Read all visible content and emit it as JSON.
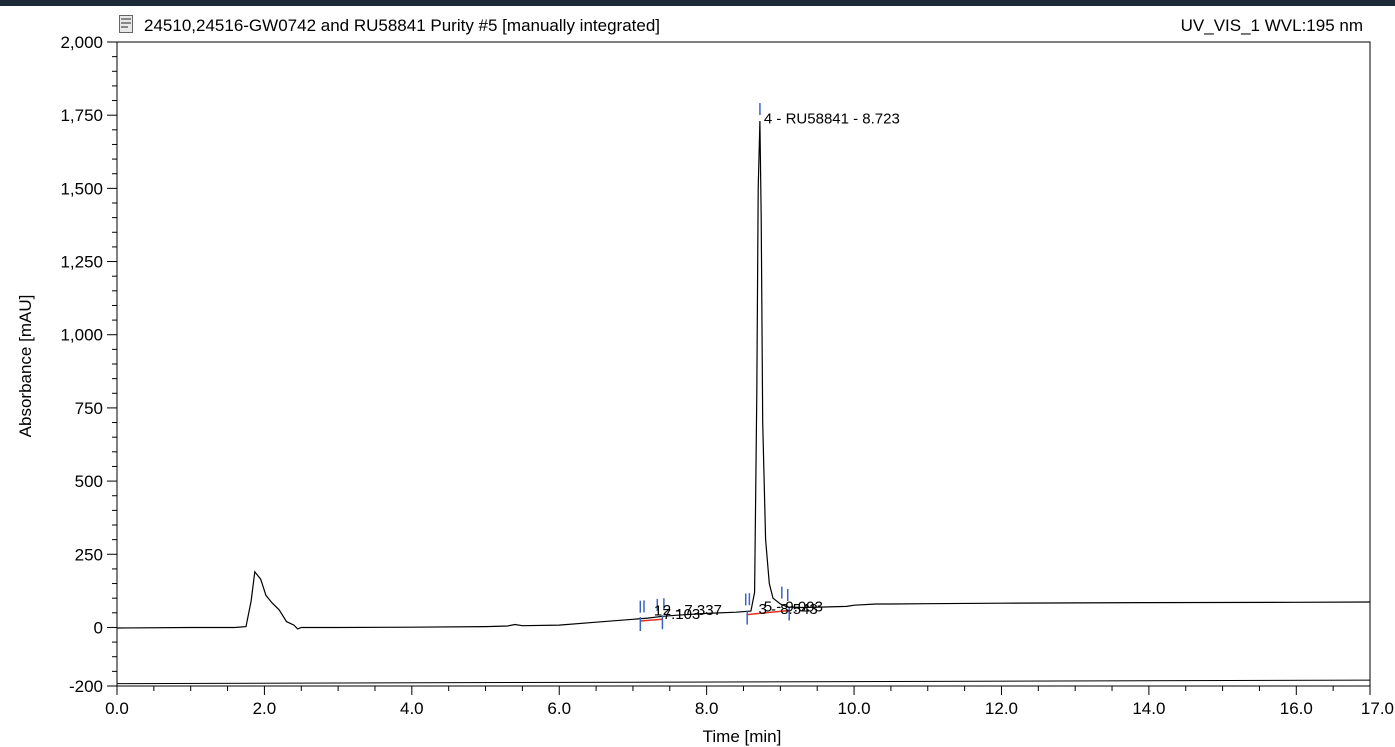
{
  "chart_data": {
    "type": "line",
    "title": "24510,24516-GW0742 and RU58841 Purity #5 [manually integrated]",
    "channel": "UV_VIS_1 WVL:195 nm",
    "xlabel": "Time [min]",
    "ylabel": "Absorbance [mAU]",
    "xlim": [
      0,
      17
    ],
    "ylim": [
      -200,
      2000
    ],
    "xticks": [
      {
        "v": 0,
        "label": "0.0"
      },
      {
        "v": 2,
        "label": "2.0"
      },
      {
        "v": 4,
        "label": "4.0"
      },
      {
        "v": 6,
        "label": "6.0"
      },
      {
        "v": 8,
        "label": "8.0"
      },
      {
        "v": 10,
        "label": "10.0"
      },
      {
        "v": 12,
        "label": "12.0"
      },
      {
        "v": 14,
        "label": "14.0"
      },
      {
        "v": 16,
        "label": "16.0"
      },
      {
        "v": 17,
        "label": "17.0"
      }
    ],
    "yticks": [
      {
        "v": -200,
        "label": "-200"
      },
      {
        "v": 0,
        "label": "0"
      },
      {
        "v": 250,
        "label": "250"
      },
      {
        "v": 500,
        "label": "500"
      },
      {
        "v": 750,
        "label": "750"
      },
      {
        "v": 1000,
        "label": "1,000"
      },
      {
        "v": 1250,
        "label": "1,250"
      },
      {
        "v": 1500,
        "label": "1,500"
      },
      {
        "v": 1750,
        "label": "1,750"
      },
      {
        "v": 2000,
        "label": "2,000"
      }
    ],
    "series": [
      {
        "x": [
          0,
          1.0,
          1.6,
          1.75,
          1.82,
          1.87,
          1.95,
          2.02,
          2.1,
          2.2,
          2.3,
          2.4,
          2.45,
          2.5,
          3.0,
          4.0,
          5.0,
          5.3,
          5.4,
          5.5,
          6.0,
          6.5,
          7.0,
          7.2,
          7.4,
          7.6,
          8.0,
          8.4,
          8.6,
          8.65,
          8.68,
          8.7,
          8.723,
          8.74,
          8.76,
          8.8,
          8.85,
          8.9,
          9.0,
          9.1,
          9.3,
          9.6,
          9.9,
          10.0,
          10.3,
          10.5,
          11.0,
          12.0,
          14.0,
          16.0,
          17.0
        ],
        "y": [
          -2,
          0,
          0,
          3,
          90,
          190,
          165,
          110,
          85,
          60,
          20,
          8,
          -5,
          0,
          0,
          1,
          3,
          5,
          10,
          6,
          8,
          18,
          28,
          32,
          38,
          42,
          48,
          52,
          56,
          120,
          800,
          1500,
          1730,
          1400,
          700,
          300,
          150,
          100,
          80,
          70,
          68,
          70,
          72,
          76,
          80,
          80,
          81,
          83,
          85,
          86,
          87
        ]
      }
    ],
    "baseline_segments": [
      {
        "x1": 7.1,
        "y1": 22,
        "x2": 7.4,
        "y2": 28
      },
      {
        "x1": 8.55,
        "y1": 44,
        "x2": 9.12,
        "y2": 58
      }
    ],
    "peak_marks": [
      8.723,
      7.1,
      7.15,
      7.33,
      7.42,
      8.53,
      8.58,
      9.02,
      9.1
    ],
    "integration_ticks": [
      7.1,
      7.4,
      8.55,
      9.12
    ],
    "peak_labels": [
      {
        "x": 8.723,
        "y": 1735,
        "text": "4 - RU58841 - 8.723"
      },
      {
        "x": 7.23,
        "y": 55,
        "text": "1"
      },
      {
        "x": 7.35,
        "y": 56,
        "text": "2 - 7.337"
      },
      {
        "x": 7.35,
        "y": 42,
        "text": "7.103"
      },
      {
        "x": 8.65,
        "y": 60,
        "text": "3 - 8.543"
      },
      {
        "x": 8.72,
        "y": 68,
        "text": "5 - 9.093"
      }
    ]
  }
}
